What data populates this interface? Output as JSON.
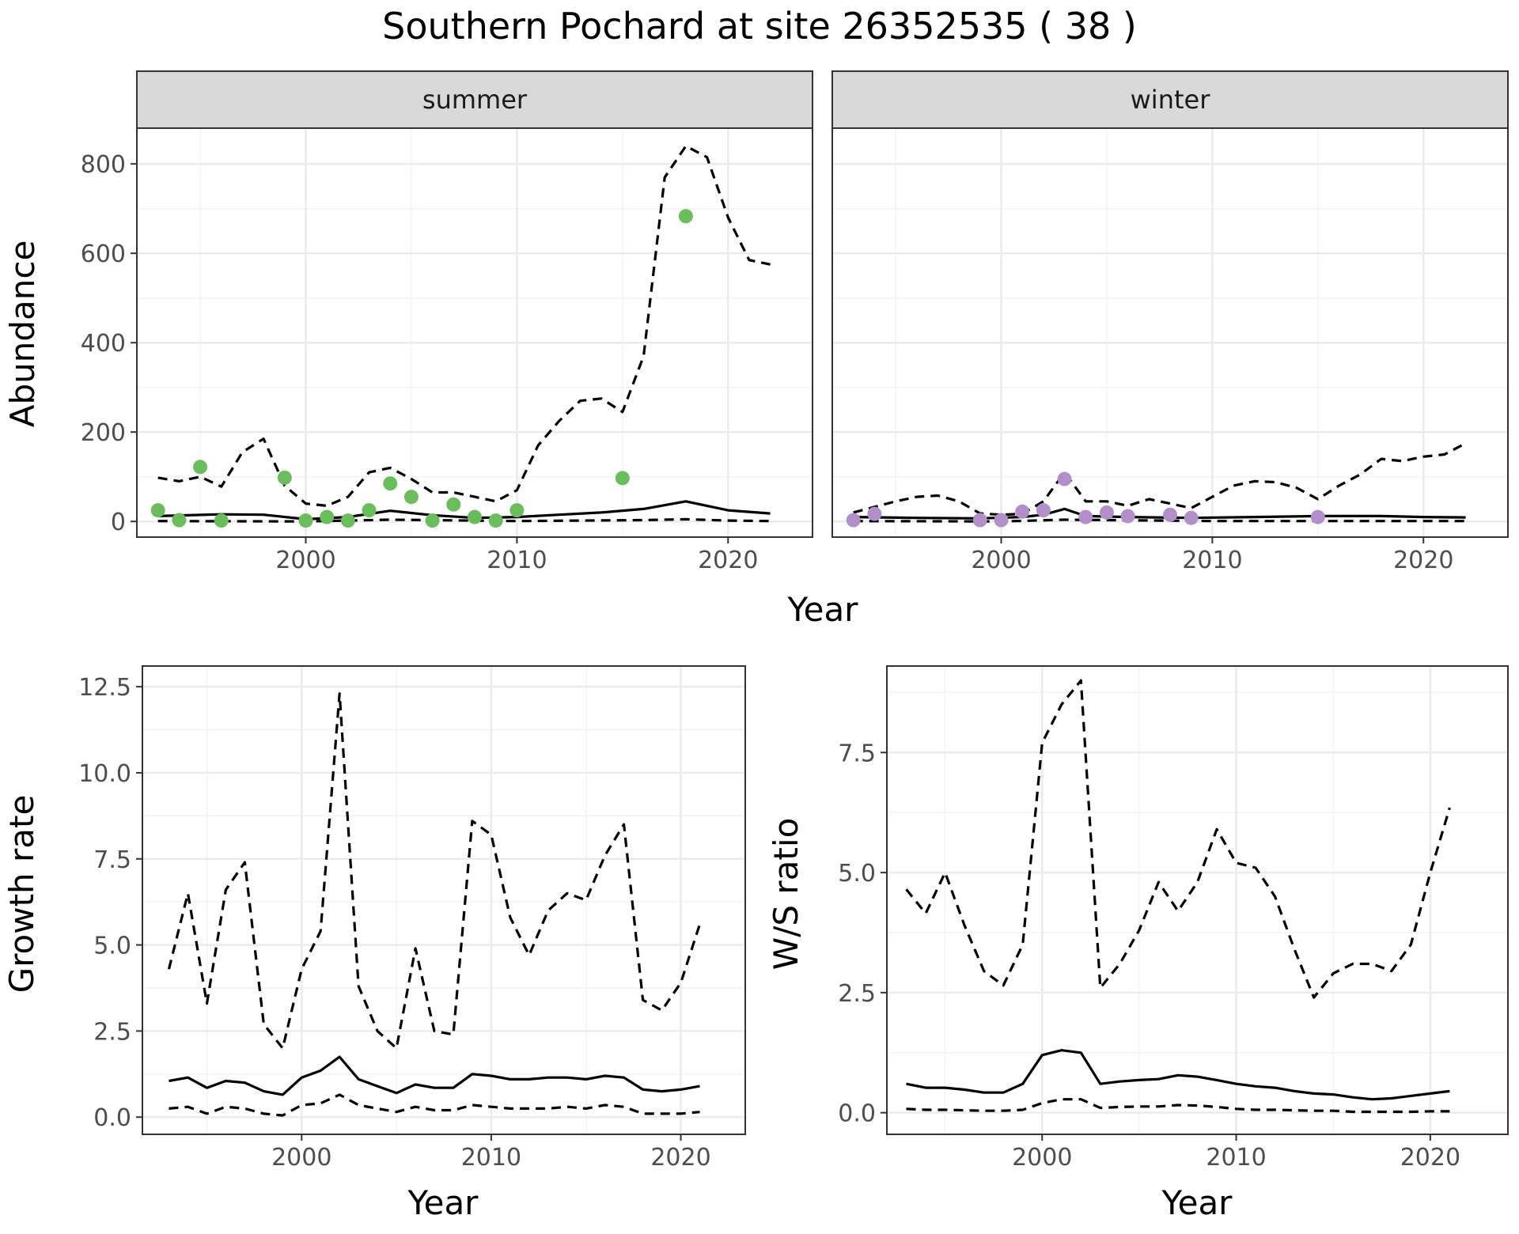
{
  "figure": {
    "title": "Southern Pochard at site 26352535 ( 38 )"
  },
  "colors": {
    "summer_points": "#6abd5b",
    "winter_points": "#b28fc9",
    "line": "#000000",
    "strip_bg": "#d9d9d9",
    "grid_major": "#ebebeb"
  },
  "chart_data": [
    {
      "type": "line",
      "facet": "summer",
      "xlabel": "Year",
      "ylabel": "Abundance",
      "xlim": [
        1992,
        2024
      ],
      "ylim": [
        -35,
        880
      ],
      "xticks": [
        2000,
        2010,
        2020
      ],
      "yticks": [
        0,
        200,
        400,
        600,
        800
      ],
      "grid": true,
      "series": [
        {
          "role": "estimate",
          "style": "solid",
          "x": [
            1993,
            1996,
            1998,
            2000,
            2002,
            2004,
            2006,
            2008,
            2010,
            2012,
            2014,
            2016,
            2018,
            2020,
            2022
          ],
          "y": [
            12,
            16,
            15,
            5,
            10,
            24,
            14,
            8,
            10,
            15,
            20,
            28,
            45,
            25,
            18
          ]
        },
        {
          "role": "upper",
          "style": "dashed",
          "x": [
            1993,
            1994,
            1995,
            1996,
            1997,
            1998,
            1999,
            2000,
            2001,
            2002,
            2003,
            2004,
            2005,
            2006,
            2007,
            2008,
            2009,
            2010,
            2011,
            2012,
            2013,
            2014,
            2015,
            2016,
            2017,
            2018,
            2019,
            2020,
            2021,
            2022
          ],
          "y": [
            98,
            90,
            100,
            78,
            155,
            185,
            80,
            40,
            35,
            55,
            110,
            120,
            95,
            65,
            65,
            55,
            45,
            70,
            170,
            225,
            270,
            275,
            245,
            370,
            770,
            840,
            815,
            680,
            585,
            575
          ]
        },
        {
          "role": "lower",
          "style": "dashed",
          "x": [
            1993,
            2000,
            2004,
            2010,
            2016,
            2018,
            2020,
            2022
          ],
          "y": [
            1,
            0,
            4,
            1,
            3,
            5,
            2,
            1
          ]
        },
        {
          "role": "observed",
          "style": "points",
          "x": [
            1993,
            1994,
            1995,
            1996,
            1999,
            2000,
            2001,
            2002,
            2003,
            2004,
            2005,
            2006,
            2007,
            2008,
            2009,
            2010,
            2015,
            2018
          ],
          "y": [
            25,
            3,
            122,
            2,
            98,
            2,
            10,
            2,
            25,
            85,
            55,
            2,
            38,
            10,
            2,
            25,
            97,
            683
          ]
        }
      ]
    },
    {
      "type": "line",
      "facet": "winter",
      "xlabel": "Year",
      "ylabel": "Abundance",
      "xlim": [
        1992,
        2024
      ],
      "ylim": [
        -35,
        880
      ],
      "xticks": [
        2000,
        2010,
        2020
      ],
      "yticks": [
        0,
        200,
        400,
        600,
        800
      ],
      "grid": true,
      "series": [
        {
          "role": "estimate",
          "style": "solid",
          "x": [
            1993,
            1996,
            1999,
            2001,
            2002,
            2003,
            2004,
            2006,
            2009,
            2012,
            2015,
            2018,
            2020,
            2022
          ],
          "y": [
            10,
            8,
            7,
            10,
            15,
            28,
            12,
            10,
            8,
            10,
            12,
            12,
            10,
            9
          ]
        },
        {
          "role": "upper",
          "style": "dashed",
          "x": [
            1993,
            1995,
            1996,
            1997,
            1998,
            1999,
            2000,
            2001,
            2002,
            2003,
            2004,
            2005,
            2006,
            2007,
            2008,
            2009,
            2010,
            2011,
            2012,
            2013,
            2014,
            2015,
            2016,
            2017,
            2018,
            2019,
            2020,
            2021,
            2022
          ],
          "y": [
            20,
            45,
            55,
            58,
            45,
            18,
            15,
            17,
            45,
            110,
            45,
            45,
            35,
            50,
            40,
            30,
            55,
            80,
            90,
            88,
            75,
            50,
            80,
            105,
            140,
            135,
            145,
            150,
            175
          ]
        },
        {
          "role": "lower",
          "style": "dashed",
          "x": [
            1993,
            2000,
            2003,
            2010,
            2015,
            2020,
            2022
          ],
          "y": [
            1,
            0,
            4,
            1,
            1,
            1,
            1
          ]
        },
        {
          "role": "observed",
          "style": "points",
          "x": [
            1993,
            1994,
            1999,
            2000,
            2001,
            2002,
            2003,
            2004,
            2005,
            2006,
            2008,
            2009,
            2015
          ],
          "y": [
            3,
            17,
            3,
            3,
            22,
            25,
            95,
            10,
            20,
            12,
            15,
            8,
            10
          ]
        }
      ]
    },
    {
      "type": "line",
      "xlabel": "Year",
      "ylabel": "Growth rate",
      "xlim": [
        1991.6,
        2023.4
      ],
      "ylim": [
        -0.5,
        13.1
      ],
      "xticks": [
        2000,
        2010,
        2020
      ],
      "yticks": [
        0.0,
        2.5,
        5.0,
        7.5,
        10.0,
        12.5
      ],
      "ytick_labels": [
        "0.0",
        "2.5",
        "5.0",
        "7.5",
        "10.0",
        "12.5"
      ],
      "grid": true,
      "series": [
        {
          "role": "estimate",
          "style": "solid",
          "x": [
            1993,
            1994,
            1995,
            1996,
            1997,
            1998,
            1999,
            2000,
            2001,
            2002,
            2003,
            2004,
            2005,
            2006,
            2007,
            2008,
            2009,
            2010,
            2011,
            2012,
            2013,
            2014,
            2015,
            2016,
            2017,
            2018,
            2019,
            2020,
            2021
          ],
          "y": [
            1.05,
            1.15,
            0.85,
            1.05,
            1.0,
            0.75,
            0.65,
            1.15,
            1.35,
            1.75,
            1.1,
            0.9,
            0.7,
            0.95,
            0.85,
            0.85,
            1.25,
            1.2,
            1.1,
            1.1,
            1.15,
            1.15,
            1.1,
            1.2,
            1.15,
            0.8,
            0.75,
            0.8,
            0.9
          ]
        },
        {
          "role": "upper",
          "style": "dashed",
          "x": [
            1993,
            1994,
            1995,
            1996,
            1997,
            1998,
            1999,
            2000,
            2001,
            2002,
            2003,
            2004,
            2005,
            2006,
            2007,
            2008,
            2009,
            2010,
            2011,
            2012,
            2013,
            2014,
            2015,
            2016,
            2017,
            2018,
            2019,
            2020,
            2021
          ],
          "y": [
            4.3,
            6.5,
            3.3,
            6.6,
            7.4,
            2.7,
            2.0,
            4.3,
            5.4,
            12.3,
            3.8,
            2.5,
            2.0,
            4.9,
            2.5,
            2.4,
            8.6,
            8.2,
            5.8,
            4.7,
            6.0,
            6.5,
            6.3,
            7.6,
            8.5,
            3.4,
            3.1,
            3.9,
            5.6
          ]
        },
        {
          "role": "lower",
          "style": "dashed",
          "x": [
            1993,
            1994,
            1995,
            1996,
            1997,
            1998,
            1999,
            2000,
            2001,
            2002,
            2003,
            2004,
            2005,
            2006,
            2007,
            2008,
            2009,
            2010,
            2011,
            2012,
            2013,
            2014,
            2015,
            2016,
            2017,
            2018,
            2019,
            2020,
            2021
          ],
          "y": [
            0.25,
            0.3,
            0.1,
            0.3,
            0.25,
            0.1,
            0.05,
            0.35,
            0.4,
            0.65,
            0.35,
            0.25,
            0.15,
            0.3,
            0.2,
            0.2,
            0.35,
            0.3,
            0.25,
            0.25,
            0.25,
            0.3,
            0.25,
            0.35,
            0.3,
            0.1,
            0.1,
            0.1,
            0.15
          ]
        }
      ]
    },
    {
      "type": "line",
      "xlabel": "Year",
      "ylabel": "W/S ratio",
      "xlim": [
        1992,
        2024
      ],
      "ylim": [
        -0.45,
        9.3
      ],
      "xticks": [
        2000,
        2010,
        2020
      ],
      "yticks": [
        0.0,
        2.5,
        5.0,
        7.5
      ],
      "ytick_labels": [
        "0.0",
        "2.5",
        "5.0",
        "7.5"
      ],
      "grid": true,
      "series": [
        {
          "role": "estimate",
          "style": "solid",
          "x": [
            1993,
            1994,
            1995,
            1996,
            1997,
            1998,
            1999,
            2000,
            2001,
            2002,
            2003,
            2004,
            2005,
            2006,
            2007,
            2008,
            2009,
            2010,
            2011,
            2012,
            2013,
            2014,
            2015,
            2016,
            2017,
            2018,
            2019,
            2020,
            2021
          ],
          "y": [
            0.6,
            0.52,
            0.52,
            0.48,
            0.42,
            0.42,
            0.6,
            1.2,
            1.3,
            1.25,
            0.6,
            0.65,
            0.68,
            0.7,
            0.78,
            0.75,
            0.68,
            0.6,
            0.55,
            0.52,
            0.45,
            0.4,
            0.38,
            0.32,
            0.28,
            0.3,
            0.35,
            0.4,
            0.45
          ]
        },
        {
          "role": "upper",
          "style": "dashed",
          "x": [
            1993,
            1994,
            1995,
            1996,
            1997,
            1998,
            1999,
            2000,
            2001,
            2002,
            2003,
            2004,
            2005,
            2006,
            2007,
            2008,
            2009,
            2010,
            2011,
            2012,
            2013,
            2014,
            2015,
            2016,
            2017,
            2018,
            2019,
            2020,
            2021
          ],
          "y": [
            4.65,
            4.15,
            5.0,
            3.9,
            2.95,
            2.65,
            3.5,
            7.7,
            8.5,
            9.0,
            2.6,
            3.1,
            3.8,
            4.8,
            4.2,
            4.8,
            5.9,
            5.2,
            5.1,
            4.5,
            3.4,
            2.4,
            2.9,
            3.1,
            3.1,
            2.95,
            3.5,
            5.0,
            6.35
          ]
        },
        {
          "role": "lower",
          "style": "dashed",
          "x": [
            1993,
            1994,
            1995,
            1996,
            1997,
            1998,
            1999,
            2000,
            2001,
            2002,
            2003,
            2004,
            2005,
            2006,
            2007,
            2008,
            2009,
            2010,
            2011,
            2012,
            2013,
            2014,
            2015,
            2016,
            2017,
            2018,
            2019,
            2020,
            2021
          ],
          "y": [
            0.08,
            0.06,
            0.06,
            0.05,
            0.04,
            0.04,
            0.06,
            0.2,
            0.28,
            0.28,
            0.1,
            0.12,
            0.13,
            0.13,
            0.16,
            0.15,
            0.12,
            0.08,
            0.06,
            0.06,
            0.05,
            0.04,
            0.04,
            0.02,
            0.02,
            0.02,
            0.02,
            0.03,
            0.03
          ]
        }
      ]
    }
  ],
  "strips": [
    "summer",
    "winter"
  ],
  "shared_xlabel_top": "Year"
}
